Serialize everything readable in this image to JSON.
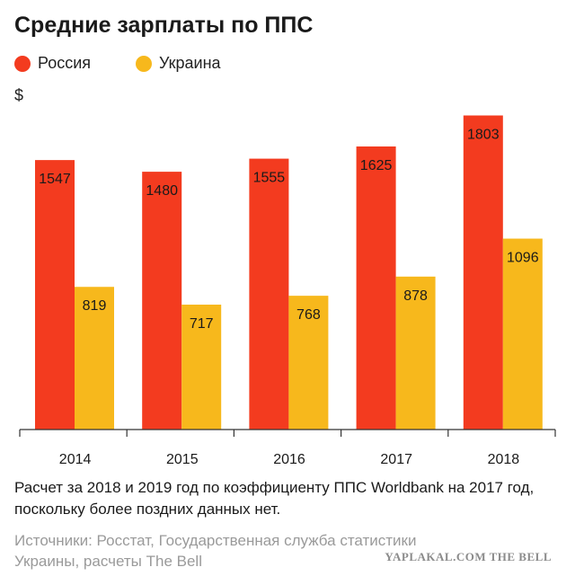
{
  "title": "Средние зарплаты по ППС",
  "legend": [
    {
      "label": "Россия",
      "color": "#f33b1f"
    },
    {
      "label": "Украина",
      "color": "#f7b81c"
    }
  ],
  "note": "Расчет за 2018 и 2019 год по коэффициенту ППС Worldbank на 2017 год, поскольку более поздних данных нет.",
  "source": "Источники: Росстат, Государственная служба статистики Украины, расчеты The Bell",
  "logo": "YAPLAKAL.COM THE BELL",
  "chart_data": {
    "type": "bar",
    "ylabel": "$",
    "categories": [
      "2014",
      "2015",
      "2016",
      "2017",
      "2018"
    ],
    "series": [
      {
        "name": "Россия",
        "color": "#f33b1f",
        "values": [
          1547,
          1480,
          1555,
          1625,
          1803
        ]
      },
      {
        "name": "Украина",
        "color": "#f7b81c",
        "values": [
          819,
          717,
          768,
          878,
          1096
        ]
      }
    ],
    "ylim": [
      0,
      1950
    ],
    "grid": false,
    "legend_position": "top-left"
  }
}
